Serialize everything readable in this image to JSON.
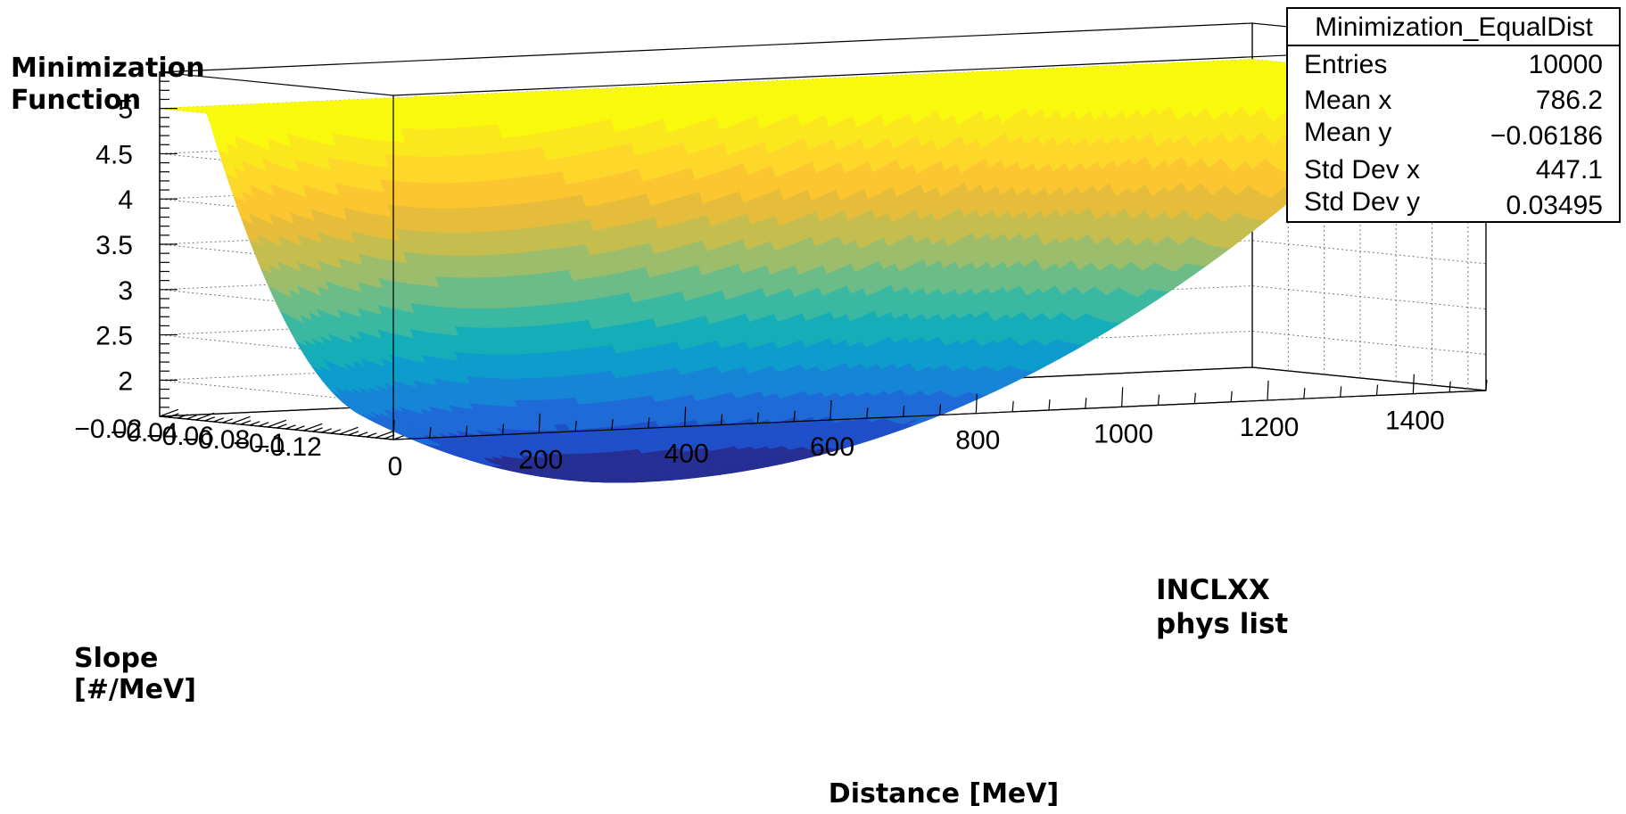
{
  "chart_data": {
    "type": "surface",
    "title": "",
    "xlabel": "Distance [MeV]",
    "ylabel": "Slope [#/MeV]",
    "zlabel": "Minimization Function",
    "xlim": [
      0,
      1500
    ],
    "ylim": [
      -0.13,
      0.0
    ],
    "zlim": [
      1.6,
      5.4
    ],
    "x_ticks": [
      0,
      200,
      400,
      600,
      800,
      1000,
      1200,
      1400
    ],
    "x_tick_labels": [
      "0",
      "200",
      "400",
      "600",
      "800",
      "1000",
      "1200",
      "1400"
    ],
    "y_ticks": [
      -0.02,
      -0.04,
      -0.06,
      -0.08,
      -0.1,
      -0.12
    ],
    "y_tick_labels": [
      "−0.02",
      "−0.04",
      "−0.06",
      "−0.08",
      "−0.1",
      "−0.12"
    ],
    "z_ticks": [
      2,
      2.5,
      3,
      3.5,
      4,
      4.5,
      5
    ],
    "z_tick_labels": [
      "2",
      "2.5",
      "3",
      "3.5",
      "4",
      "4.5",
      "5"
    ],
    "z_grid": true,
    "minimum": {
      "x": 340,
      "y": -0.125,
      "z": 1.0
    },
    "contour_levels": 20,
    "palette": [
      "#262f93",
      "#1f4fc9",
      "#1e6ad6",
      "#1685d6",
      "#0d9ccc",
      "#15aeb8",
      "#3ab8a2",
      "#6cbc88",
      "#9bbd6c",
      "#c6bd4f",
      "#e6bd3b",
      "#fbc62f",
      "#fdd72a",
      "#fbe71d",
      "#f9f90e"
    ],
    "stats_box": {
      "title": "Minimization_EqualDist",
      "rows": [
        {
          "label": "Entries",
          "value": "10000"
        },
        {
          "label": "Mean x",
          "value": "786.2"
        },
        {
          "label": "Mean y",
          "value": "−0.06186"
        },
        {
          "label": "Std Dev x",
          "value": "447.1"
        },
        {
          "label": "Std Dev y",
          "value": "0.03495"
        }
      ]
    },
    "annotation": [
      "INCLXX",
      "phys list"
    ]
  }
}
